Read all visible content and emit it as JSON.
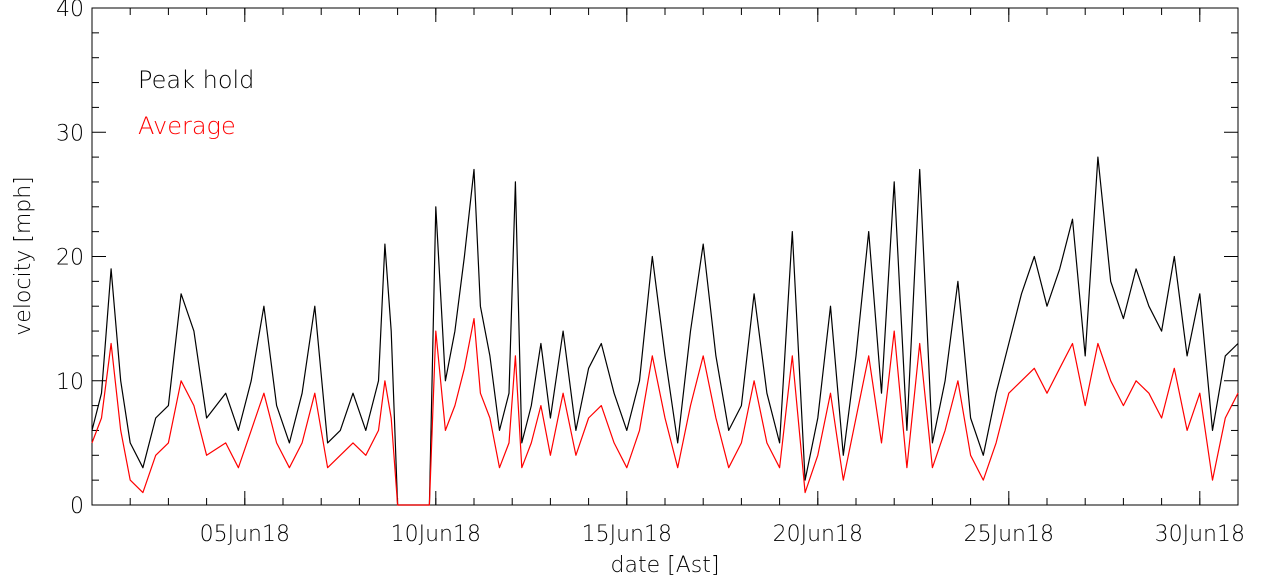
{
  "chart_data": {
    "type": "line",
    "xlabel": "date [Ast]",
    "ylabel": "velocity [mph]",
    "xlim": [
      "2018-06-01",
      "2018-07-01"
    ],
    "ylim": [
      0,
      40
    ],
    "x_ticks": [
      {
        "date": "2018-06-05",
        "label": "05Jun18"
      },
      {
        "date": "2018-06-10",
        "label": "10Jun18"
      },
      {
        "date": "2018-06-15",
        "label": "15Jun18"
      },
      {
        "date": "2018-06-20",
        "label": "20Jun18"
      },
      {
        "date": "2018-06-25",
        "label": "25Jun18"
      },
      {
        "date": "2018-06-30",
        "label": "30Jun18"
      }
    ],
    "y_ticks": [
      0,
      10,
      20,
      30,
      40
    ],
    "grid": false,
    "legend_position": "top-left",
    "series": [
      {
        "name": "Peak hold",
        "color": "#000000",
        "points": [
          [
            "2018-06-01 00:00",
            6
          ],
          [
            "2018-06-01 06:00",
            9
          ],
          [
            "2018-06-01 12:00",
            19
          ],
          [
            "2018-06-01 18:00",
            10
          ],
          [
            "2018-06-02 00:00",
            5
          ],
          [
            "2018-06-02 08:00",
            3
          ],
          [
            "2018-06-02 16:00",
            7
          ],
          [
            "2018-06-03 00:00",
            8
          ],
          [
            "2018-06-03 08:00",
            17
          ],
          [
            "2018-06-03 16:00",
            14
          ],
          [
            "2018-06-04 00:00",
            7
          ],
          [
            "2018-06-04 12:00",
            9
          ],
          [
            "2018-06-04 20:00",
            6
          ],
          [
            "2018-06-05 04:00",
            10
          ],
          [
            "2018-06-05 12:00",
            16
          ],
          [
            "2018-06-05 20:00",
            8
          ],
          [
            "2018-06-06 04:00",
            5
          ],
          [
            "2018-06-06 12:00",
            9
          ],
          [
            "2018-06-06 20:00",
            16
          ],
          [
            "2018-06-07 04:00",
            5
          ],
          [
            "2018-06-07 12:00",
            6
          ],
          [
            "2018-06-07 20:00",
            9
          ],
          [
            "2018-06-08 04:00",
            6
          ],
          [
            "2018-06-08 12:00",
            10
          ],
          [
            "2018-06-08 16:00",
            21
          ],
          [
            "2018-06-08 20:00",
            14
          ],
          [
            "2018-06-09 00:00",
            0
          ],
          [
            "2018-06-09 20:00",
            0
          ],
          [
            "2018-06-10 00:00",
            24
          ],
          [
            "2018-06-10 06:00",
            10
          ],
          [
            "2018-06-10 12:00",
            14
          ],
          [
            "2018-06-10 18:00",
            20
          ],
          [
            "2018-06-11 00:00",
            27
          ],
          [
            "2018-06-11 04:00",
            16
          ],
          [
            "2018-06-11 10:00",
            12
          ],
          [
            "2018-06-11 16:00",
            6
          ],
          [
            "2018-06-11 22:00",
            9
          ],
          [
            "2018-06-12 02:00",
            26
          ],
          [
            "2018-06-12 06:00",
            5
          ],
          [
            "2018-06-12 12:00",
            8
          ],
          [
            "2018-06-12 18:00",
            13
          ],
          [
            "2018-06-13 00:00",
            7
          ],
          [
            "2018-06-13 08:00",
            14
          ],
          [
            "2018-06-13 16:00",
            6
          ],
          [
            "2018-06-14 00:00",
            11
          ],
          [
            "2018-06-14 08:00",
            13
          ],
          [
            "2018-06-14 16:00",
            9
          ],
          [
            "2018-06-15 00:00",
            6
          ],
          [
            "2018-06-15 08:00",
            10
          ],
          [
            "2018-06-15 16:00",
            20
          ],
          [
            "2018-06-16 00:00",
            12
          ],
          [
            "2018-06-16 08:00",
            5
          ],
          [
            "2018-06-16 16:00",
            14
          ],
          [
            "2018-06-17 00:00",
            21
          ],
          [
            "2018-06-17 08:00",
            12
          ],
          [
            "2018-06-17 16:00",
            6
          ],
          [
            "2018-06-18 00:00",
            8
          ],
          [
            "2018-06-18 08:00",
            17
          ],
          [
            "2018-06-18 16:00",
            9
          ],
          [
            "2018-06-19 00:00",
            5
          ],
          [
            "2018-06-19 08:00",
            22
          ],
          [
            "2018-06-19 16:00",
            2
          ],
          [
            "2018-06-20 00:00",
            7
          ],
          [
            "2018-06-20 08:00",
            16
          ],
          [
            "2018-06-20 16:00",
            4
          ],
          [
            "2018-06-21 00:00",
            12
          ],
          [
            "2018-06-21 08:00",
            22
          ],
          [
            "2018-06-21 16:00",
            9
          ],
          [
            "2018-06-22 00:00",
            26
          ],
          [
            "2018-06-22 08:00",
            6
          ],
          [
            "2018-06-22 16:00",
            27
          ],
          [
            "2018-06-23 00:00",
            5
          ],
          [
            "2018-06-23 08:00",
            10
          ],
          [
            "2018-06-23 16:00",
            18
          ],
          [
            "2018-06-24 00:00",
            7
          ],
          [
            "2018-06-24 08:00",
            4
          ],
          [
            "2018-06-24 16:00",
            9
          ],
          [
            "2018-06-25 00:00",
            13
          ],
          [
            "2018-06-25 08:00",
            17
          ],
          [
            "2018-06-25 16:00",
            20
          ],
          [
            "2018-06-26 00:00",
            16
          ],
          [
            "2018-06-26 08:00",
            19
          ],
          [
            "2018-06-26 16:00",
            23
          ],
          [
            "2018-06-27 00:00",
            12
          ],
          [
            "2018-06-27 08:00",
            28
          ],
          [
            "2018-06-27 16:00",
            18
          ],
          [
            "2018-06-28 00:00",
            15
          ],
          [
            "2018-06-28 08:00",
            19
          ],
          [
            "2018-06-28 16:00",
            16
          ],
          [
            "2018-06-29 00:00",
            14
          ],
          [
            "2018-06-29 08:00",
            20
          ],
          [
            "2018-06-29 16:00",
            12
          ],
          [
            "2018-06-30 00:00",
            17
          ],
          [
            "2018-06-30 08:00",
            6
          ],
          [
            "2018-06-30 16:00",
            12
          ],
          [
            "2018-07-01 00:00",
            13
          ]
        ]
      },
      {
        "name": "Average",
        "color": "#ff0000",
        "points": [
          [
            "2018-06-01 00:00",
            5
          ],
          [
            "2018-06-01 06:00",
            7
          ],
          [
            "2018-06-01 12:00",
            13
          ],
          [
            "2018-06-01 18:00",
            6
          ],
          [
            "2018-06-02 00:00",
            2
          ],
          [
            "2018-06-02 08:00",
            1
          ],
          [
            "2018-06-02 16:00",
            4
          ],
          [
            "2018-06-03 00:00",
            5
          ],
          [
            "2018-06-03 08:00",
            10
          ],
          [
            "2018-06-03 16:00",
            8
          ],
          [
            "2018-06-04 00:00",
            4
          ],
          [
            "2018-06-04 12:00",
            5
          ],
          [
            "2018-06-04 20:00",
            3
          ],
          [
            "2018-06-05 04:00",
            6
          ],
          [
            "2018-06-05 12:00",
            9
          ],
          [
            "2018-06-05 20:00",
            5
          ],
          [
            "2018-06-06 04:00",
            3
          ],
          [
            "2018-06-06 12:00",
            5
          ],
          [
            "2018-06-06 20:00",
            9
          ],
          [
            "2018-06-07 04:00",
            3
          ],
          [
            "2018-06-07 12:00",
            4
          ],
          [
            "2018-06-07 20:00",
            5
          ],
          [
            "2018-06-08 04:00",
            4
          ],
          [
            "2018-06-08 12:00",
            6
          ],
          [
            "2018-06-08 16:00",
            10
          ],
          [
            "2018-06-08 20:00",
            7
          ],
          [
            "2018-06-09 00:00",
            0
          ],
          [
            "2018-06-09 20:00",
            0
          ],
          [
            "2018-06-10 00:00",
            14
          ],
          [
            "2018-06-10 06:00",
            6
          ],
          [
            "2018-06-10 12:00",
            8
          ],
          [
            "2018-06-10 18:00",
            11
          ],
          [
            "2018-06-11 00:00",
            15
          ],
          [
            "2018-06-11 04:00",
            9
          ],
          [
            "2018-06-11 10:00",
            7
          ],
          [
            "2018-06-11 16:00",
            3
          ],
          [
            "2018-06-11 22:00",
            5
          ],
          [
            "2018-06-12 02:00",
            12
          ],
          [
            "2018-06-12 06:00",
            3
          ],
          [
            "2018-06-12 12:00",
            5
          ],
          [
            "2018-06-12 18:00",
            8
          ],
          [
            "2018-06-13 00:00",
            4
          ],
          [
            "2018-06-13 08:00",
            9
          ],
          [
            "2018-06-13 16:00",
            4
          ],
          [
            "2018-06-14 00:00",
            7
          ],
          [
            "2018-06-14 08:00",
            8
          ],
          [
            "2018-06-14 16:00",
            5
          ],
          [
            "2018-06-15 00:00",
            3
          ],
          [
            "2018-06-15 08:00",
            6
          ],
          [
            "2018-06-15 16:00",
            12
          ],
          [
            "2018-06-16 00:00",
            7
          ],
          [
            "2018-06-16 08:00",
            3
          ],
          [
            "2018-06-16 16:00",
            8
          ],
          [
            "2018-06-17 00:00",
            12
          ],
          [
            "2018-06-17 08:00",
            7
          ],
          [
            "2018-06-17 16:00",
            3
          ],
          [
            "2018-06-18 00:00",
            5
          ],
          [
            "2018-06-18 08:00",
            10
          ],
          [
            "2018-06-18 16:00",
            5
          ],
          [
            "2018-06-19 00:00",
            3
          ],
          [
            "2018-06-19 08:00",
            12
          ],
          [
            "2018-06-19 16:00",
            1
          ],
          [
            "2018-06-20 00:00",
            4
          ],
          [
            "2018-06-20 08:00",
            9
          ],
          [
            "2018-06-20 16:00",
            2
          ],
          [
            "2018-06-21 00:00",
            7
          ],
          [
            "2018-06-21 08:00",
            12
          ],
          [
            "2018-06-21 16:00",
            5
          ],
          [
            "2018-06-22 00:00",
            14
          ],
          [
            "2018-06-22 08:00",
            3
          ],
          [
            "2018-06-22 16:00",
            13
          ],
          [
            "2018-06-23 00:00",
            3
          ],
          [
            "2018-06-23 08:00",
            6
          ],
          [
            "2018-06-23 16:00",
            10
          ],
          [
            "2018-06-24 00:00",
            4
          ],
          [
            "2018-06-24 08:00",
            2
          ],
          [
            "2018-06-24 16:00",
            5
          ],
          [
            "2018-06-25 00:00",
            9
          ],
          [
            "2018-06-25 08:00",
            10
          ],
          [
            "2018-06-25 16:00",
            11
          ],
          [
            "2018-06-26 00:00",
            9
          ],
          [
            "2018-06-26 08:00",
            11
          ],
          [
            "2018-06-26 16:00",
            13
          ],
          [
            "2018-06-27 00:00",
            8
          ],
          [
            "2018-06-27 08:00",
            13
          ],
          [
            "2018-06-27 16:00",
            10
          ],
          [
            "2018-06-28 00:00",
            8
          ],
          [
            "2018-06-28 08:00",
            10
          ],
          [
            "2018-06-28 16:00",
            9
          ],
          [
            "2018-06-29 00:00",
            7
          ],
          [
            "2018-06-29 08:00",
            11
          ],
          [
            "2018-06-29 16:00",
            6
          ],
          [
            "2018-06-30 00:00",
            9
          ],
          [
            "2018-06-30 08:00",
            2
          ],
          [
            "2018-06-30 16:00",
            7
          ],
          [
            "2018-07-01 00:00",
            9
          ]
        ]
      }
    ]
  }
}
